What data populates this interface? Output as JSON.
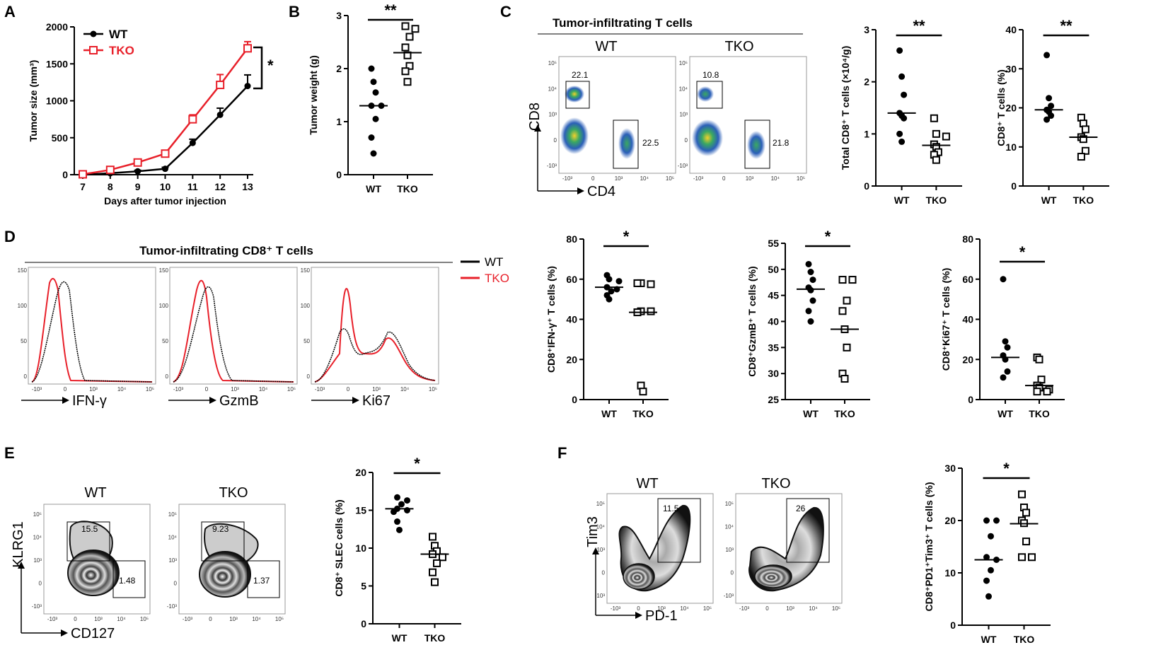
{
  "colors": {
    "wt": "#000000",
    "tko": "#e8202a"
  },
  "panels": {
    "A": {
      "label": "A",
      "legend": [
        "WT",
        "TKO"
      ],
      "sig": "*"
    },
    "B": {
      "label": "B",
      "sig": "**"
    },
    "C": {
      "label": "C",
      "title": "Tumor-infiltrating T cells",
      "wt": "WT",
      "tko": "TKO",
      "ylab": "CD8",
      "xlab": "CD4",
      "gates": {
        "wt_cd8": "22.1",
        "wt_cd4": "22.5",
        "tko_cd8": "10.8",
        "tko_cd4": "21.8"
      },
      "sig1": "**",
      "sig2": "**"
    },
    "D": {
      "label": "D",
      "title": "Tumor-infiltrating CD8⁺ T cells",
      "legend": [
        "WT",
        "TKO"
      ],
      "markers": [
        "IFN-γ",
        "GzmB",
        "Ki67"
      ],
      "sig": [
        "*",
        "*",
        "*"
      ]
    },
    "E": {
      "label": "E",
      "wt": "WT",
      "tko": "TKO",
      "ylab": "KLRG1",
      "xlab": "CD127",
      "gates": {
        "wt_slec": "15.5",
        "wt_mpec": "1.48",
        "tko_slec": "9.23",
        "tko_mpec": "1.37"
      },
      "sig": "*"
    },
    "F": {
      "label": "F",
      "wt": "WT",
      "tko": "TKO",
      "ylab": "Tim3",
      "xlab": "PD-1",
      "gates": {
        "wt": "11.5",
        "tko": "26"
      },
      "sig": "*"
    }
  },
  "flow_axis_ticks": [
    "-10³",
    "0",
    "10³",
    "10⁴",
    "10⁵"
  ],
  "chart_data": [
    {
      "panel": "A",
      "type": "line",
      "title": "",
      "xlabel": "Days after tumor injection",
      "ylabel": "Tumor size (mm³)",
      "x": [
        7,
        8,
        9,
        10,
        11,
        12,
        13
      ],
      "xticks": [
        "7",
        "8",
        "9",
        "10",
        "11",
        "12",
        "13"
      ],
      "yticks": [
        "0",
        "500",
        "1000",
        "1500",
        "2000"
      ],
      "ylim": [
        0,
        2000
      ],
      "series": [
        {
          "name": "WT",
          "values": [
            0,
            20,
            45,
            80,
            430,
            810,
            1200
          ],
          "errors": [
            0,
            10,
            15,
            20,
            50,
            90,
            150
          ]
        },
        {
          "name": "TKO",
          "values": [
            5,
            65,
            165,
            285,
            750,
            1215,
            1710
          ],
          "errors": [
            0,
            15,
            25,
            30,
            60,
            140,
            90
          ]
        }
      ]
    },
    {
      "panel": "B",
      "type": "scatter",
      "xlabel": "",
      "ylabel": "Tumor weight (g)",
      "categories": [
        "WT",
        "TKO"
      ],
      "yticks": [
        "0",
        "1",
        "2",
        "3"
      ],
      "ylim": [
        0,
        3
      ],
      "series": [
        {
          "name": "WT",
          "values": [
            2.0,
            1.75,
            1.55,
            1.3,
            1.3,
            1.05,
            0.7,
            0.4
          ],
          "median": 1.3
        },
        {
          "name": "TKO",
          "values": [
            2.8,
            2.75,
            2.6,
            2.4,
            2.25,
            2.05,
            1.95,
            1.75
          ],
          "median": 2.3
        }
      ]
    },
    {
      "panel": "C",
      "type": "scatter",
      "xlabel": "",
      "ylabel": "Total CD8⁺ T cells (×10⁴/g)",
      "categories": [
        "WT",
        "TKO"
      ],
      "yticks": [
        "0",
        "1",
        "2",
        "3"
      ],
      "ylim": [
        0,
        3
      ],
      "series": [
        {
          "name": "WT",
          "values": [
            2.6,
            2.1,
            1.75,
            1.4,
            1.35,
            1.3,
            1.0,
            0.85
          ],
          "median": 1.4
        },
        {
          "name": "TKO",
          "values": [
            1.3,
            1.0,
            0.95,
            0.8,
            0.75,
            0.65,
            0.6,
            0.5
          ],
          "median": 0.78
        }
      ]
    },
    {
      "panel": "C",
      "type": "scatter",
      "xlabel": "",
      "ylabel": "CD8⁺ T cells (%)",
      "categories": [
        "WT",
        "TKO"
      ],
      "yticks": [
        "0",
        "10",
        "20",
        "30",
        "40"
      ],
      "ylim": [
        0,
        40
      ],
      "series": [
        {
          "name": "WT",
          "values": [
            33.5,
            22.5,
            20.5,
            19.5,
            19,
            18,
            17
          ],
          "median": 19.5
        },
        {
          "name": "TKO",
          "values": [
            17.5,
            16,
            14.5,
            12.5,
            12,
            9,
            7.5
          ],
          "median": 12.5
        }
      ]
    },
    {
      "panel": "D",
      "type": "scatter",
      "xlabel": "",
      "ylabel": "CD8⁺IFN-γ⁺ T cells (%)",
      "categories": [
        "WT",
        "TKO"
      ],
      "yticks": [
        "0",
        "20",
        "40",
        "60",
        "80"
      ],
      "ylim": [
        0,
        80
      ],
      "series": [
        {
          "name": "WT",
          "values": [
            62,
            60,
            59,
            56,
            55,
            54,
            52,
            50
          ],
          "median": 56
        },
        {
          "name": "TKO",
          "values": [
            58,
            57.5,
            58,
            44,
            44,
            43.5,
            7,
            4
          ],
          "median": 43.5
        }
      ]
    },
    {
      "panel": "D",
      "type": "scatter",
      "xlabel": "",
      "ylabel": "CD8⁺GzmB⁺ T cells (%)",
      "categories": [
        "WT",
        "TKO"
      ],
      "yticks": [
        "25",
        "30",
        "35",
        "40",
        "45",
        "50",
        "55"
      ],
      "ylim": [
        25,
        55
      ],
      "series": [
        {
          "name": "WT",
          "values": [
            51,
            49.5,
            48,
            46.5,
            46,
            44,
            42,
            40
          ],
          "median": 46.2
        },
        {
          "name": "TKO",
          "values": [
            48,
            48,
            44,
            42,
            38.5,
            35,
            30,
            29
          ],
          "median": 38.5
        }
      ]
    },
    {
      "panel": "D",
      "type": "scatter",
      "xlabel": "",
      "ylabel": "CD8⁺Ki67⁺ T cells (%)",
      "categories": [
        "WT",
        "TKO"
      ],
      "yticks": [
        "0",
        "20",
        "40",
        "60",
        "80"
      ],
      "ylim": [
        0,
        80
      ],
      "series": [
        {
          "name": "WT",
          "values": [
            60,
            29,
            26,
            22,
            20,
            14,
            11
          ],
          "median": 21
        },
        {
          "name": "TKO",
          "values": [
            21,
            20,
            10,
            7,
            6,
            5,
            4,
            4
          ],
          "median": 7
        }
      ]
    },
    {
      "panel": "E",
      "type": "scatter",
      "xlabel": "",
      "ylabel": "CD8⁺ SLEC cells (%)",
      "categories": [
        "WT",
        "TKO"
      ],
      "yticks": [
        "0",
        "5",
        "10",
        "15",
        "20"
      ],
      "ylim": [
        0,
        20
      ],
      "series": [
        {
          "name": "WT",
          "values": [
            16.7,
            16.3,
            15.8,
            15.2,
            15,
            14.8,
            13.5,
            12.4
          ],
          "median": 15.2
        },
        {
          "name": "TKO",
          "values": [
            11.5,
            10.3,
            9.6,
            9.2,
            8.8,
            8,
            6.8,
            5.5
          ],
          "median": 9.2
        }
      ]
    },
    {
      "panel": "F",
      "type": "scatter",
      "xlabel": "",
      "ylabel": "CD8⁺PD1⁺Tim3⁺ T cells (%)",
      "categories": [
        "WT",
        "TKO"
      ],
      "yticks": [
        "0",
        "10",
        "20",
        "30"
      ],
      "ylim": [
        0,
        30
      ],
      "series": [
        {
          "name": "WT",
          "values": [
            20,
            20,
            17,
            13,
            12.5,
            10.5,
            8.5,
            5.5
          ],
          "median": 12.5
        },
        {
          "name": "TKO",
          "values": [
            25,
            22.5,
            21.5,
            20,
            19.5,
            16,
            13,
            13
          ],
          "median": 19.4
        }
      ]
    }
  ]
}
